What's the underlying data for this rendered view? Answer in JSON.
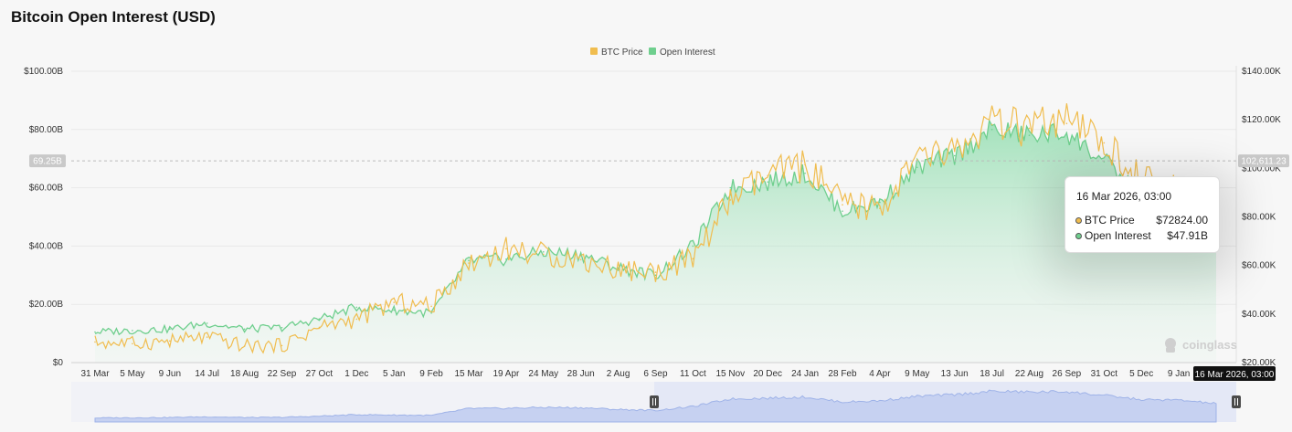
{
  "page": {
    "title": "Bitcoin Open Interest (USD)"
  },
  "colors": {
    "btc_price": "#f0bd4f",
    "open_interest": "#6fcf8e",
    "navigator": "#9fb3e8",
    "tag_bg": "#c9c9c9",
    "tag_dark": "#111111"
  },
  "chart_data": {
    "type": "area",
    "title": "Bitcoin Open Interest (USD)",
    "legend_position": "top-center",
    "grid": true,
    "x": [
      "31 Mar",
      "5 May",
      "9 Jun",
      "14 Jul",
      "18 Aug",
      "22 Sep",
      "27 Oct",
      "1 Dec",
      "5 Jan",
      "9 Feb",
      "15 Mar",
      "19 Apr",
      "24 May",
      "28 Jun",
      "2 Aug",
      "6 Sep",
      "11 Oct",
      "15 Nov",
      "20 Dec",
      "24 Jan",
      "28 Feb",
      "4 Apr",
      "9 May",
      "13 Jun",
      "18 Jul",
      "22 Aug",
      "26 Sep",
      "31 Oct",
      "5 Dec",
      "9 Jan",
      "16 Mar 2026, 03:00"
    ],
    "y_left": {
      "ticks": [
        "$0",
        "$20.00B",
        "$40.00B",
        "$60.00B",
        "$80.00B",
        "$100.00B"
      ],
      "range": [
        0,
        100
      ]
    },
    "y_right": {
      "ticks": [
        "$20.00K",
        "$40.00K",
        "$60.00K",
        "$80.00K",
        "$100.00K",
        "$120.00K",
        "$140.00K"
      ],
      "range": [
        20,
        140
      ]
    },
    "crosshair": {
      "left_label": "69.25B",
      "right_label": "102,611.23",
      "x_label": "16 Mar 2026, 03:00"
    },
    "series": [
      {
        "name": "BTC Price",
        "axis": "right",
        "unit": "K USD",
        "values": [
          28.5,
          27.8,
          28.9,
          30.5,
          26.8,
          27.0,
          34.5,
          37.9,
          44.8,
          43.2,
          61.0,
          66.9,
          64.6,
          62.4,
          58.5,
          57.2,
          62.8,
          87.0,
          97.0,
          101.5,
          85.0,
          83.5,
          103.5,
          107.0,
          118.0,
          116.5,
          118.5,
          110.5,
          95.0,
          90.0,
          72.8
        ]
      },
      {
        "name": "Open Interest",
        "axis": "left",
        "unit": "B USD",
        "values": [
          10.5,
          11.0,
          11.5,
          13.5,
          11.5,
          12.0,
          15.0,
          19.0,
          18.0,
          17.0,
          35.0,
          35.5,
          38.0,
          37.0,
          32.5,
          30.0,
          40.0,
          60.0,
          62.0,
          65.0,
          52.0,
          55.0,
          67.0,
          71.0,
          80.0,
          78.0,
          79.0,
          69.0,
          58.0,
          57.0,
          47.91
        ]
      }
    ]
  },
  "legend": [
    {
      "label": "BTC Price"
    },
    {
      "label": "Open Interest"
    }
  ],
  "tooltip": {
    "date": "16 Mar 2026, 03:00",
    "rows": [
      {
        "label": "BTC Price",
        "value": "$72824.00"
      },
      {
        "label": "Open Interest",
        "value": "$47.91B"
      }
    ]
  },
  "watermark": "coinglass",
  "icons": {
    "navigator_handle": "grip-handle-icon",
    "watermark": "coinglass-logo-icon"
  }
}
